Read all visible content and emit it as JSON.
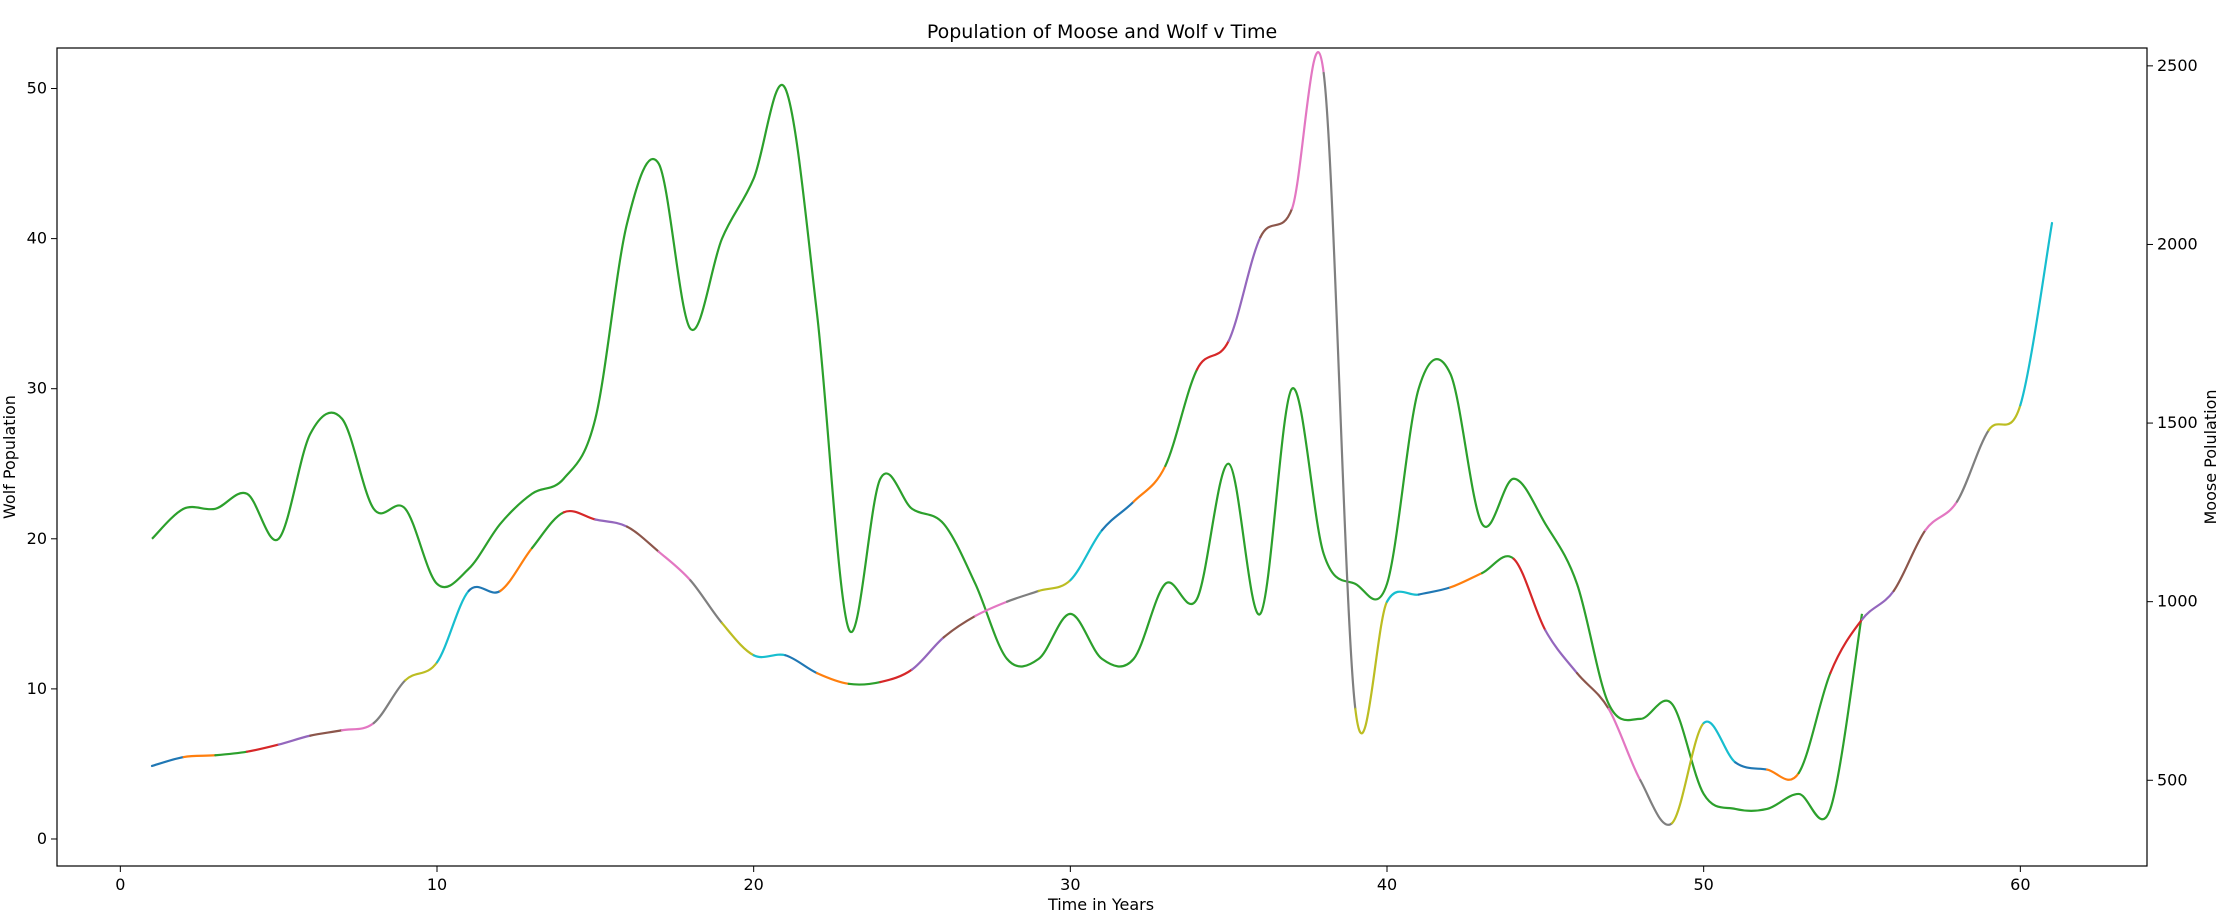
{
  "chart_data": {
    "type": "line",
    "title": "Population of Moose and Wolf v Time",
    "xlabel": "Time in Years",
    "ylabel_left": "Wolf Population",
    "ylabel_right": "Moose Polulation",
    "xlim": [
      -2,
      64
    ],
    "ylim_left": [
      -1.8,
      52.7
    ],
    "ylim_right": [
      260,
      2550
    ],
    "x_ticks": [
      0,
      10,
      20,
      30,
      40,
      50,
      60
    ],
    "y_ticks_left": [
      0,
      10,
      20,
      30,
      40,
      50
    ],
    "y_ticks_right": [
      500,
      1000,
      1500,
      2000,
      2500
    ],
    "grid": false,
    "legend": "none",
    "series": [
      {
        "axis": "left",
        "color": "#2ca02c",
        "x": [
          1,
          2,
          3,
          4,
          5,
          6,
          7,
          8,
          9,
          10,
          11,
          12,
          13,
          14,
          15,
          16,
          17,
          18,
          19,
          20,
          21,
          22,
          23,
          24,
          25,
          26,
          27,
          28,
          29,
          30,
          31,
          32,
          33,
          34,
          35,
          36,
          37,
          38,
          39,
          40,
          41,
          42,
          43,
          44,
          45,
          46,
          47,
          48,
          49,
          50,
          51,
          52,
          53,
          54,
          55,
          56,
          57,
          58,
          59,
          60,
          61
        ],
        "values": [
          20,
          22,
          22,
          23,
          20,
          27,
          28,
          22,
          22,
          17,
          18,
          21,
          23,
          24,
          28,
          41,
          45,
          34,
          40,
          44,
          50,
          35,
          14,
          24,
          22,
          21,
          17,
          12,
          12,
          15,
          12,
          12,
          17,
          16,
          25,
          15,
          30,
          19,
          17,
          17,
          30,
          31,
          21,
          24,
          21,
          17,
          9,
          8,
          9,
          3,
          2,
          2,
          3,
          2,
          15,
          null,
          null,
          null,
          null,
          null,
          null
        ]
      },
      {
        "axis": "right",
        "color_segments": [
          "#1f77b4",
          "#ff7f0e",
          "#2ca02c",
          "#d62728",
          "#9467bd",
          "#8c564b",
          "#e377c2",
          "#7f7f7f",
          "#bcbd22",
          "#17becf"
        ],
        "x": [
          1,
          2,
          3,
          4,
          5,
          6,
          7,
          8,
          9,
          10,
          11,
          12,
          13,
          14,
          15,
          16,
          17,
          18,
          19,
          20,
          21,
          22,
          23,
          24,
          25,
          26,
          27,
          28,
          29,
          30,
          31,
          32,
          33,
          34,
          35,
          36,
          37,
          38,
          39,
          40,
          41,
          42,
          43,
          44,
          45,
          46,
          47,
          48,
          49,
          50,
          51,
          52,
          53,
          54,
          55,
          56,
          57,
          58,
          59,
          60,
          61
        ],
        "values": [
          540,
          565,
          570,
          580,
          600,
          625,
          640,
          660,
          780,
          830,
          1030,
          1030,
          1150,
          1250,
          1230,
          1210,
          1140,
          1060,
          940,
          850,
          850,
          800,
          770,
          775,
          810,
          900,
          960,
          1000,
          1030,
          1060,
          1200,
          1280,
          1380,
          1650,
          1730,
          2020,
          2100,
          2480,
          700,
          1000,
          1020,
          1040,
          1080,
          1120,
          920,
          800,
          700,
          500,
          380,
          660,
          550,
          530,
          520,
          800,
          950,
          1030,
          1200,
          1280,
          1480,
          1550,
          2060
        ]
      }
    ]
  }
}
